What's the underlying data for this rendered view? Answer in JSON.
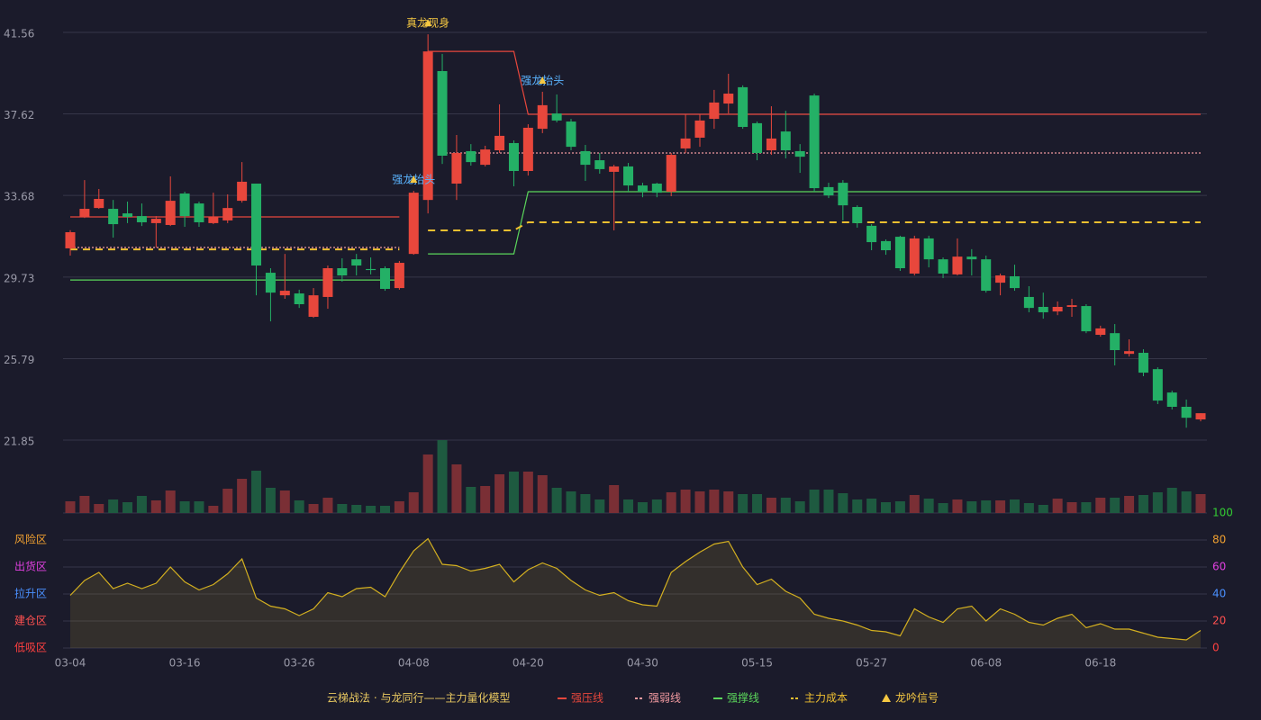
{
  "chart_data": {
    "type": "candlestick",
    "categories": [
      "03-04",
      null,
      null,
      null,
      null,
      null,
      null,
      null,
      "03-16",
      null,
      null,
      null,
      null,
      null,
      null,
      null,
      "03-26",
      null,
      null,
      null,
      null,
      null,
      null,
      null,
      "04-08",
      null,
      null,
      null,
      null,
      null,
      null,
      null,
      "04-20",
      null,
      null,
      null,
      null,
      null,
      null,
      null,
      "04-30",
      null,
      null,
      null,
      null,
      null,
      null,
      null,
      "05-15",
      null,
      null,
      null,
      null,
      null,
      null,
      null,
      "05-27",
      null,
      null,
      null,
      null,
      null,
      null,
      null,
      "06-08",
      null,
      null,
      null,
      null,
      null,
      null,
      null,
      "06-18",
      null,
      null,
      null,
      null,
      null,
      null,
      null
    ],
    "open": [
      31.12,
      32.64,
      33.07,
      33.03,
      32.81,
      32.68,
      32.34,
      32.25,
      33.77,
      33.29,
      32.34,
      32.47,
      33.42,
      34.25,
      29.94,
      28.85,
      28.94,
      27.81,
      28.77,
      30.16,
      30.59,
      30.12,
      30.16,
      29.2,
      30.85,
      33.46,
      39.69,
      34.25,
      35.82,
      35.16,
      35.86,
      36.21,
      34.86,
      36.9,
      37.64,
      37.25,
      35.82,
      35.38,
      34.82,
      35.08,
      34.16,
      34.25,
      33.86,
      35.95,
      36.47,
      37.38,
      38.12,
      38.91,
      37.17,
      35.86,
      36.77,
      35.82,
      38.51,
      34.08,
      34.29,
      33.12,
      32.21,
      31.47,
      31.68,
      29.9,
      31.6,
      30.59,
      29.86,
      30.72,
      30.59,
      29.46,
      29.77,
      28.77,
      28.29,
      28.07,
      28.29,
      28.33,
      26.94,
      27.02,
      26.02,
      26.07,
      25.28,
      24.15,
      23.46,
      22.85
    ],
    "high": [
      32.0,
      34.42,
      33.99,
      33.46,
      33.38,
      33.29,
      32.68,
      34.6,
      33.86,
      33.38,
      33.81,
      33.73,
      35.29,
      34.25,
      30.16,
      30.85,
      29.12,
      29.2,
      30.29,
      30.64,
      30.85,
      30.68,
      30.25,
      30.51,
      33.9,
      41.47,
      40.52,
      36.6,
      36.16,
      36.08,
      38.08,
      36.34,
      37.12,
      38.69,
      38.56,
      37.38,
      36.12,
      35.73,
      35.16,
      35.25,
      34.29,
      34.29,
      35.73,
      37.6,
      37.6,
      38.78,
      39.56,
      39.0,
      37.25,
      37.99,
      37.77,
      36.16,
      38.6,
      34.29,
      34.42,
      33.2,
      32.29,
      31.55,
      31.73,
      31.73,
      31.73,
      30.68,
      31.6,
      31.08,
      30.77,
      29.9,
      30.33,
      29.29,
      28.98,
      28.55,
      28.68,
      28.42,
      27.38,
      27.46,
      26.72,
      26.24,
      25.37,
      24.24,
      23.81,
      23.15
    ],
    "low": [
      30.77,
      32.59,
      33.03,
      31.64,
      32.34,
      32.2,
      31.16,
      32.2,
      32.16,
      32.16,
      32.29,
      32.34,
      33.33,
      28.85,
      27.59,
      28.68,
      28.24,
      27.76,
      28.2,
      29.51,
      29.81,
      29.86,
      29.07,
      29.12,
      30.81,
      32.81,
      35.2,
      33.46,
      35.12,
      35.08,
      35.73,
      34.12,
      34.64,
      36.69,
      37.21,
      35.86,
      34.38,
      34.73,
      31.99,
      33.86,
      33.59,
      33.59,
      33.64,
      35.73,
      36.03,
      36.9,
      37.64,
      36.9,
      35.38,
      35.64,
      35.47,
      34.77,
      33.86,
      33.55,
      32.47,
      32.12,
      31.03,
      30.81,
      30.03,
      29.81,
      30.2,
      29.68,
      29.81,
      29.81,
      28.98,
      28.85,
      29.07,
      28.03,
      27.72,
      27.89,
      27.81,
      27.02,
      26.85,
      25.46,
      25.89,
      24.94,
      23.59,
      23.33,
      22.45,
      22.76
    ],
    "close": [
      31.9,
      33.03,
      33.51,
      32.29,
      32.64,
      32.38,
      32.55,
      33.42,
      32.68,
      32.38,
      32.64,
      33.07,
      34.34,
      30.29,
      28.98,
      29.07,
      28.42,
      28.85,
      30.16,
      29.81,
      30.29,
      30.07,
      29.16,
      30.42,
      33.81,
      40.64,
      35.6,
      35.73,
      35.29,
      35.9,
      36.56,
      34.86,
      36.95,
      38.04,
      37.3,
      36.03,
      35.16,
      34.95,
      35.08,
      34.16,
      33.86,
      33.81,
      35.64,
      36.43,
      37.3,
      38.17,
      38.6,
      36.99,
      35.73,
      36.43,
      35.86,
      35.55,
      34.03,
      33.68,
      33.2,
      32.34,
      31.42,
      31.03,
      30.16,
      31.6,
      30.59,
      29.9,
      30.72,
      30.59,
      29.07,
      29.81,
      29.2,
      28.24,
      28.03,
      28.29,
      28.37,
      27.11,
      27.25,
      26.2,
      26.15,
      25.11,
      23.76,
      23.46,
      22.93,
      23.15
    ],
    "up_color": "#e8473c",
    "down_color": "#24b066",
    "ylim": [
      21.85,
      41.56
    ],
    "yticks": [
      21.85,
      25.79,
      29.73,
      33.68,
      37.62,
      41.56
    ],
    "grid": true,
    "levels": [
      {
        "name": "强压线",
        "color": "#e8473c",
        "style": "solid",
        "values": [
          32.64,
          32.64,
          32.64,
          32.64,
          32.64,
          32.64,
          32.64,
          32.64,
          32.64,
          32.64,
          32.64,
          32.64,
          32.64,
          32.64,
          32.64,
          32.64,
          32.64,
          32.64,
          32.64,
          32.64,
          32.64,
          32.64,
          32.64,
          32.64,
          null,
          40.64,
          40.64,
          40.64,
          40.64,
          40.64,
          40.64,
          40.64,
          37.6,
          37.6,
          37.6,
          37.6,
          37.6,
          37.6,
          37.6,
          37.6,
          37.6,
          37.6,
          37.6,
          37.6,
          37.6,
          37.6,
          37.6,
          37.6,
          37.6,
          37.6,
          37.6,
          37.6,
          37.6,
          37.6,
          37.6,
          37.6,
          37.6,
          37.6,
          37.6,
          37.6,
          37.6,
          37.6,
          37.6,
          37.6,
          37.6,
          37.6,
          37.6,
          37.6,
          37.6,
          37.6,
          37.6,
          37.6,
          37.6,
          37.6,
          37.6,
          37.6,
          37.6,
          37.6,
          37.6,
          37.6
        ]
      },
      {
        "name": "强弱线",
        "color": "#f29aa0",
        "style": "dotted",
        "values": [
          31.16,
          31.16,
          31.16,
          31.16,
          31.16,
          31.16,
          31.16,
          31.16,
          31.16,
          31.16,
          31.16,
          31.16,
          31.16,
          31.16,
          31.16,
          31.16,
          31.16,
          31.16,
          31.16,
          31.16,
          31.16,
          31.16,
          31.16,
          31.16,
          null,
          null,
          35.73,
          35.73,
          35.73,
          35.73,
          35.73,
          35.73,
          35.73,
          35.73,
          35.73,
          35.73,
          35.73,
          35.73,
          35.73,
          35.73,
          35.73,
          35.73,
          35.73,
          35.73,
          35.73,
          35.73,
          35.73,
          35.73,
          35.73,
          35.73,
          35.73,
          35.73,
          35.73,
          35.73,
          35.73,
          35.73,
          35.73,
          35.73,
          35.73,
          35.73,
          35.73,
          35.73,
          35.73,
          35.73,
          35.73,
          35.73,
          35.73,
          35.73,
          35.73,
          35.73,
          35.73,
          35.73,
          35.73,
          35.73,
          35.73,
          35.73,
          35.73,
          35.73,
          35.73,
          35.73
        ]
      },
      {
        "name": "强撑线",
        "color": "#5bd65b",
        "style": "solid",
        "values": [
          29.59,
          29.59,
          29.59,
          29.59,
          29.59,
          29.59,
          29.59,
          29.59,
          29.59,
          29.59,
          29.59,
          29.59,
          29.59,
          29.59,
          29.59,
          29.59,
          29.59,
          29.59,
          29.59,
          29.59,
          29.59,
          29.59,
          29.59,
          29.59,
          null,
          30.85,
          30.85,
          30.85,
          30.85,
          30.85,
          30.85,
          30.85,
          33.86,
          33.86,
          33.86,
          33.86,
          33.86,
          33.86,
          33.86,
          33.86,
          33.86,
          33.86,
          33.86,
          33.86,
          33.86,
          33.86,
          33.86,
          33.86,
          33.86,
          33.86,
          33.86,
          33.86,
          33.86,
          33.86,
          33.86,
          33.86,
          33.86,
          33.86,
          33.86,
          33.86,
          33.86,
          33.86,
          33.86,
          33.86,
          33.86,
          33.86,
          33.86,
          33.86,
          33.86,
          33.86,
          33.86,
          33.86,
          33.86,
          33.86,
          33.86,
          33.86,
          33.86,
          33.86,
          33.86,
          33.86
        ]
      },
      {
        "name": "主力成本",
        "color": "#f0c030",
        "style": "dashed",
        "values": [
          31.07,
          31.07,
          31.07,
          31.07,
          31.07,
          31.07,
          31.07,
          31.07,
          31.07,
          31.07,
          31.07,
          31.07,
          31.07,
          31.07,
          31.07,
          31.07,
          31.07,
          31.07,
          31.07,
          31.07,
          31.07,
          31.07,
          31.07,
          31.07,
          null,
          31.99,
          31.99,
          31.99,
          31.99,
          31.99,
          31.99,
          31.99,
          32.38,
          32.38,
          32.38,
          32.38,
          32.38,
          32.38,
          32.38,
          32.38,
          32.38,
          32.38,
          32.38,
          32.38,
          32.38,
          32.38,
          32.38,
          32.38,
          32.38,
          32.38,
          32.38,
          32.38,
          32.38,
          32.38,
          32.38,
          32.38,
          32.38,
          32.38,
          32.38,
          32.38,
          32.38,
          32.38,
          32.38,
          32.38,
          32.38,
          32.38,
          32.38,
          32.38,
          32.38,
          32.38,
          32.38,
          32.38,
          32.38,
          32.38,
          32.38,
          32.38,
          32.38,
          32.38,
          32.38,
          32.38
        ]
      }
    ],
    "signals": [
      {
        "label": "强龙抬头",
        "index": 24,
        "color": "#5ab4ff"
      },
      {
        "label": "真龙现身",
        "index": 25,
        "color": "#f5c842"
      },
      {
        "label": "强龙抬头",
        "index": 33,
        "color": "#5ab4ff"
      }
    ],
    "signal_legend": "龙吟信号",
    "signal_color": "#f5c842",
    "volume": {
      "up_color": "#7a2f35",
      "down_color": "#1e5a40",
      "values": [
        13,
        19,
        10,
        15,
        12,
        19,
        14,
        25,
        13,
        13,
        8,
        27,
        38,
        47,
        28,
        25,
        14,
        10,
        17,
        10,
        9,
        8,
        8,
        13,
        23,
        65,
        81,
        54,
        29,
        30,
        43,
        46,
        46,
        42,
        28,
        24,
        21,
        15,
        31,
        15,
        12,
        15,
        23,
        26,
        24,
        26,
        24,
        21,
        21,
        17,
        17,
        13,
        26,
        26,
        22,
        15,
        16,
        12,
        13,
        20,
        16,
        11,
        15,
        13,
        14,
        14,
        15,
        11,
        9,
        16,
        12,
        12,
        17,
        17,
        19,
        20,
        23,
        28,
        24,
        21
      ]
    },
    "oscillator": {
      "color": "#d4b020",
      "values": [
        39,
        50,
        56,
        44,
        48,
        44,
        48,
        60,
        49,
        43,
        47,
        55,
        66,
        37,
        31,
        29,
        24,
        29,
        41,
        38,
        44,
        45,
        38,
        56,
        72,
        81,
        62,
        61,
        57,
        59,
        62,
        49,
        58,
        63,
        59,
        50,
        43,
        39,
        41,
        35,
        32,
        31,
        56,
        64,
        71,
        77,
        79,
        60,
        47,
        51,
        42,
        37,
        25,
        22,
        20,
        17,
        13,
        12,
        9,
        29,
        23,
        19,
        29,
        31,
        20,
        29,
        25,
        19,
        17,
        22,
        25,
        15,
        18,
        14,
        14,
        11,
        8,
        7,
        6,
        13
      ],
      "ylim": [
        0,
        100
      ],
      "yticks": [
        0,
        20,
        40,
        60,
        80,
        100
      ],
      "tick_colors": [
        "#ff4040",
        "#ff5050",
        "#4a90ff",
        "#e040e0",
        "#f0a030",
        "#33cc33"
      ],
      "zones": [
        {
          "label": "风险区",
          "value": 80,
          "color": "#f0a030"
        },
        {
          "label": "出货区",
          "value": 60,
          "color": "#e040e0"
        },
        {
          "label": "拉升区",
          "value": 40,
          "color": "#4a90ff"
        },
        {
          "label": "建仓区",
          "value": 20,
          "color": "#ff5050"
        },
        {
          "label": "低吸区",
          "value": 0,
          "color": "#ff4040"
        }
      ]
    },
    "legend": {
      "title": "云梯战法 · 与龙同行——主力量化模型",
      "color": "#e8c860"
    }
  }
}
